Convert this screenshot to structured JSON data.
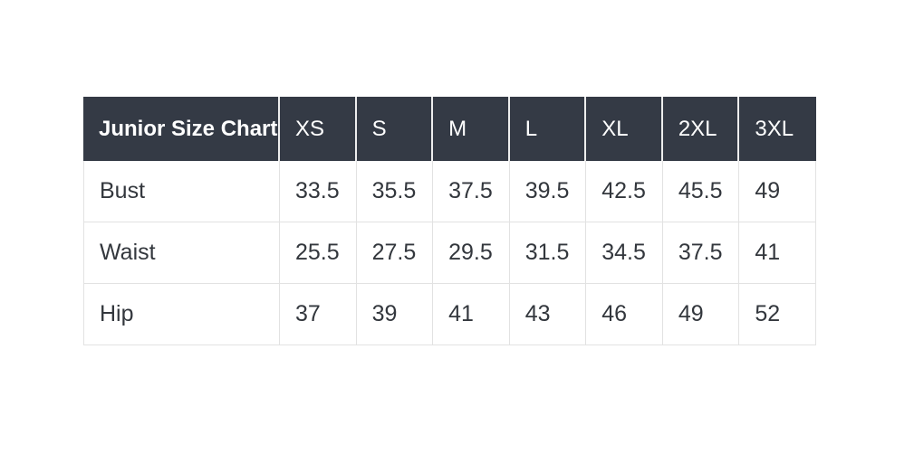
{
  "page": {
    "background": "#ffffff"
  },
  "table": {
    "title": "Junior Size Chart",
    "columns": [
      "XS",
      "S",
      "M",
      "L",
      "XL",
      "2XL",
      "3XL"
    ],
    "rows": [
      {
        "label": "Bust",
        "values": [
          "33.5",
          "35.5",
          "37.5",
          "39.5",
          "42.5",
          "45.5",
          "49"
        ]
      },
      {
        "label": "Waist",
        "values": [
          "25.5",
          "27.5",
          "29.5",
          "31.5",
          "34.5",
          "37.5",
          "41"
        ]
      },
      {
        "label": "Hip",
        "values": [
          "37",
          "39",
          "41",
          "43",
          "46",
          "49",
          "52"
        ]
      }
    ],
    "colors": {
      "header_bg": "#343a45",
      "header_text": "#ffffff",
      "body_text": "#33373d",
      "border": "#e2e2e2",
      "header_divider": "#ededed"
    }
  },
  "chart_data": {
    "type": "table",
    "title": "Junior Size Chart",
    "columns": [
      "XS",
      "S",
      "M",
      "L",
      "XL",
      "2XL",
      "3XL"
    ],
    "rows": [
      {
        "label": "Bust",
        "values": [
          33.5,
          35.5,
          37.5,
          39.5,
          42.5,
          45.5,
          49
        ]
      },
      {
        "label": "Waist",
        "values": [
          25.5,
          27.5,
          29.5,
          31.5,
          34.5,
          37.5,
          41
        ]
      },
      {
        "label": "Hip",
        "values": [
          37,
          39,
          41,
          43,
          46,
          49,
          52
        ]
      }
    ],
    "layout": {
      "grid": true,
      "header_style": "dark",
      "value_alignment": "left"
    }
  }
}
